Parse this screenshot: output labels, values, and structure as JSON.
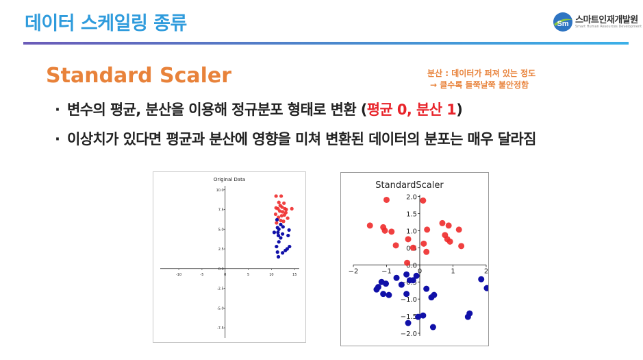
{
  "slide": {
    "title": "데이터 스케일링 종류"
  },
  "logo": {
    "name": "스마트인재개발원",
    "subtitle": "Smart Human Resources Development",
    "mark": "Sm",
    "icon": "globe-swoosh-icon",
    "colors": {
      "blue": "#2e74c2",
      "green": "#8cc63f"
    }
  },
  "section": {
    "heading": "Standard Scaler",
    "note": {
      "line1": "분산 : 데이터가 퍼져 있는 정도",
      "line2": "→ 클수록 들쭉날쭉 불안정함"
    },
    "bullets": [
      {
        "marker": "·",
        "text": "변수의 평균, 분산을 이용해 정규분포 형태로 변환 (",
        "highlight": "평균 0, 분산 1",
        "suffix": ")"
      },
      {
        "marker": "·",
        "text": "이상치가 있다면 평균과 분산에 영향을 미쳐 변환된 데이터의 분포는 매우 달라짐"
      }
    ]
  },
  "colors": {
    "title": "#2e9bdc",
    "heading": "#e8823a",
    "highlight": "#e8232a",
    "red_points": "#ee2b2b",
    "blue_points": "#1010a8"
  },
  "chart_data": [
    {
      "type": "scatter",
      "title": "Original Data",
      "xlabel": "",
      "ylabel": "",
      "xlim": [
        -14,
        16
      ],
      "ylim": [
        -8.8,
        10.5
      ],
      "xticks": [
        -10,
        -5,
        0,
        5,
        10,
        15
      ],
      "xtick_labels": [
        "-10",
        "-5",
        "0",
        "5",
        "10",
        "15"
      ],
      "yticks": [
        -7.5,
        -5.0,
        -2.5,
        0.0,
        2.5,
        5.0,
        7.5,
        10.0
      ],
      "ytick_labels": [
        "-7.5",
        "-5.0",
        "-2.5",
        "0.0",
        "2.5",
        "5.0",
        "7.5",
        "10.0"
      ],
      "axes_through_origin": true,
      "grid": false,
      "series": [
        {
          "color": "#ee2b2b",
          "points": [
            [
              11.0,
              9.2
            ],
            [
              12.1,
              9.2
            ],
            [
              11.6,
              8.4
            ],
            [
              11.9,
              8.0
            ],
            [
              12.7,
              8.3
            ],
            [
              12.3,
              7.8
            ],
            [
              11.0,
              7.7
            ],
            [
              11.4,
              7.6
            ],
            [
              12.9,
              7.6
            ],
            [
              13.2,
              7.5
            ],
            [
              14.4,
              7.6
            ],
            [
              11.8,
              7.3
            ],
            [
              12.4,
              7.2
            ],
            [
              13.1,
              7.1
            ],
            [
              10.9,
              6.9
            ],
            [
              12.2,
              6.7
            ],
            [
              12.8,
              6.8
            ],
            [
              11.5,
              6.5
            ],
            [
              13.5,
              6.4
            ],
            [
              12.0,
              6.1
            ],
            [
              12.6,
              6.0
            ],
            [
              11.1,
              5.8
            ]
          ]
        },
        {
          "color": "#1010a8",
          "points": [
            [
              11.2,
              6.2
            ],
            [
              12.0,
              5.6
            ],
            [
              11.3,
              5.2
            ],
            [
              11.6,
              5.0
            ],
            [
              12.5,
              5.3
            ],
            [
              13.8,
              4.9
            ],
            [
              10.6,
              4.6
            ],
            [
              11.4,
              4.6
            ],
            [
              12.4,
              4.4
            ],
            [
              11.5,
              4.2
            ],
            [
              13.6,
              4.2
            ],
            [
              12.0,
              3.9
            ],
            [
              11.6,
              3.4
            ],
            [
              11.1,
              2.8
            ],
            [
              13.9,
              2.8
            ],
            [
              13.4,
              2.5
            ],
            [
              11.3,
              2.1
            ],
            [
              12.4,
              2.0
            ],
            [
              11.5,
              1.5
            ],
            [
              13.0,
              2.3
            ]
          ]
        }
      ]
    },
    {
      "type": "scatter",
      "title": "StandardScaler",
      "xlabel": "",
      "ylabel": "",
      "xlim": [
        -2.0,
        2.0
      ],
      "ylim": [
        -2.08,
        2.05
      ],
      "xticks": [
        -2,
        -1,
        0,
        1,
        2
      ],
      "xtick_labels": [
        "−2",
        "−1",
        "0",
        "1",
        "2"
      ],
      "yticks": [
        -2.0,
        -1.5,
        -1.0,
        -0.5,
        0.0,
        0.5,
        1.0,
        1.5,
        2.0
      ],
      "ytick_labels": [
        "−2.0",
        "−1.5",
        "−1.0",
        "−0.5",
        "0.0",
        "0.5",
        "1.0",
        "1.5",
        "2.0"
      ],
      "axes_through_origin": true,
      "grid": false,
      "series": [
        {
          "color": "#ee2b2b",
          "points": [
            [
              -1.0,
              1.9
            ],
            [
              0.1,
              1.88
            ],
            [
              -1.5,
              1.15
            ],
            [
              -1.1,
              1.1
            ],
            [
              -1.05,
              1.0
            ],
            [
              0.22,
              1.03
            ],
            [
              -0.85,
              0.97
            ],
            [
              0.68,
              1.22
            ],
            [
              0.87,
              1.15
            ],
            [
              1.18,
              1.03
            ],
            [
              0.76,
              0.87
            ],
            [
              0.83,
              0.75
            ],
            [
              0.91,
              0.68
            ],
            [
              -0.35,
              0.75
            ],
            [
              0.12,
              0.62
            ],
            [
              -0.72,
              0.57
            ],
            [
              1.25,
              0.55
            ],
            [
              -0.2,
              0.5
            ],
            [
              0.2,
              0.38
            ],
            [
              -0.38,
              0.06
            ]
          ]
        },
        {
          "color": "#1010a8",
          "points": [
            [
              -0.7,
              -0.38
            ],
            [
              -0.4,
              -0.28
            ],
            [
              -0.3,
              -0.45
            ],
            [
              -0.1,
              -0.32
            ],
            [
              -0.2,
              -0.45
            ],
            [
              1.85,
              -0.42
            ],
            [
              -1.15,
              -0.5
            ],
            [
              -1.02,
              -0.55
            ],
            [
              -0.55,
              -0.58
            ],
            [
              -1.25,
              -0.65
            ],
            [
              0.2,
              -0.7
            ],
            [
              -1.3,
              -0.72
            ],
            [
              -1.1,
              -0.85
            ],
            [
              -0.93,
              -0.88
            ],
            [
              -0.4,
              -0.85
            ],
            [
              0.43,
              -0.88
            ],
            [
              0.35,
              -0.95
            ],
            [
              2.02,
              -0.68
            ],
            [
              1.5,
              -1.42
            ],
            [
              1.45,
              -1.52
            ],
            [
              0.1,
              -1.48
            ],
            [
              -0.05,
              -1.52
            ],
            [
              -0.35,
              -1.7
            ],
            [
              0.4,
              -1.82
            ]
          ]
        }
      ]
    }
  ]
}
